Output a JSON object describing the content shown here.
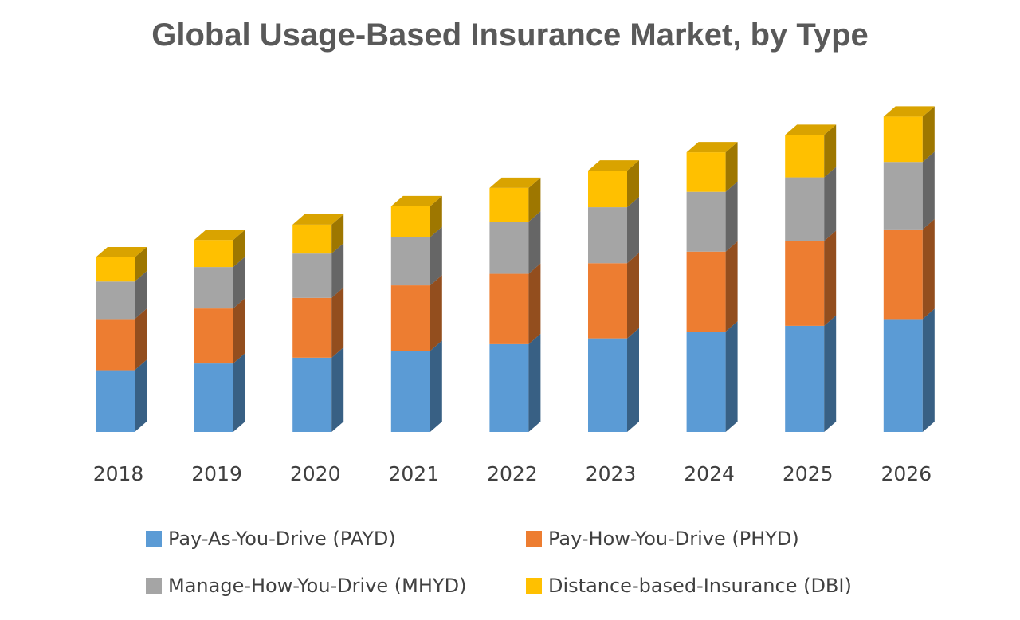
{
  "chart_data": {
    "type": "bar",
    "stacked": true,
    "title": "Global Usage-Based Insurance Market, by Type",
    "categories": [
      "2018",
      "2019",
      "2020",
      "2021",
      "2022",
      "2023",
      "2024",
      "2025",
      "2026"
    ],
    "series": [
      {
        "name": "Pay-As-You-Drive (PAYD)",
        "color": "#5B9BD5",
        "values": [
          64,
          71,
          77,
          84,
          91,
          97,
          104,
          110,
          117
        ]
      },
      {
        "name": "Pay-How-You-Drive (PHYD)",
        "color": "#ED7D31",
        "values": [
          53,
          57,
          62,
          68,
          73,
          78,
          83,
          88,
          93
        ]
      },
      {
        "name": "Manage-How-You-Drive (MHYD)",
        "color": "#A5A5A5",
        "values": [
          39,
          43,
          46,
          50,
          54,
          58,
          62,
          66,
          70
        ]
      },
      {
        "name": "Distance-based-Insurance (DBI)",
        "color": "#FFC000",
        "values": [
          25,
          28,
          30,
          32,
          35,
          38,
          41,
          44,
          47
        ]
      }
    ],
    "yaxis_visible": false,
    "grid": false,
    "legend_position": "bottom",
    "style": "3d-column"
  }
}
